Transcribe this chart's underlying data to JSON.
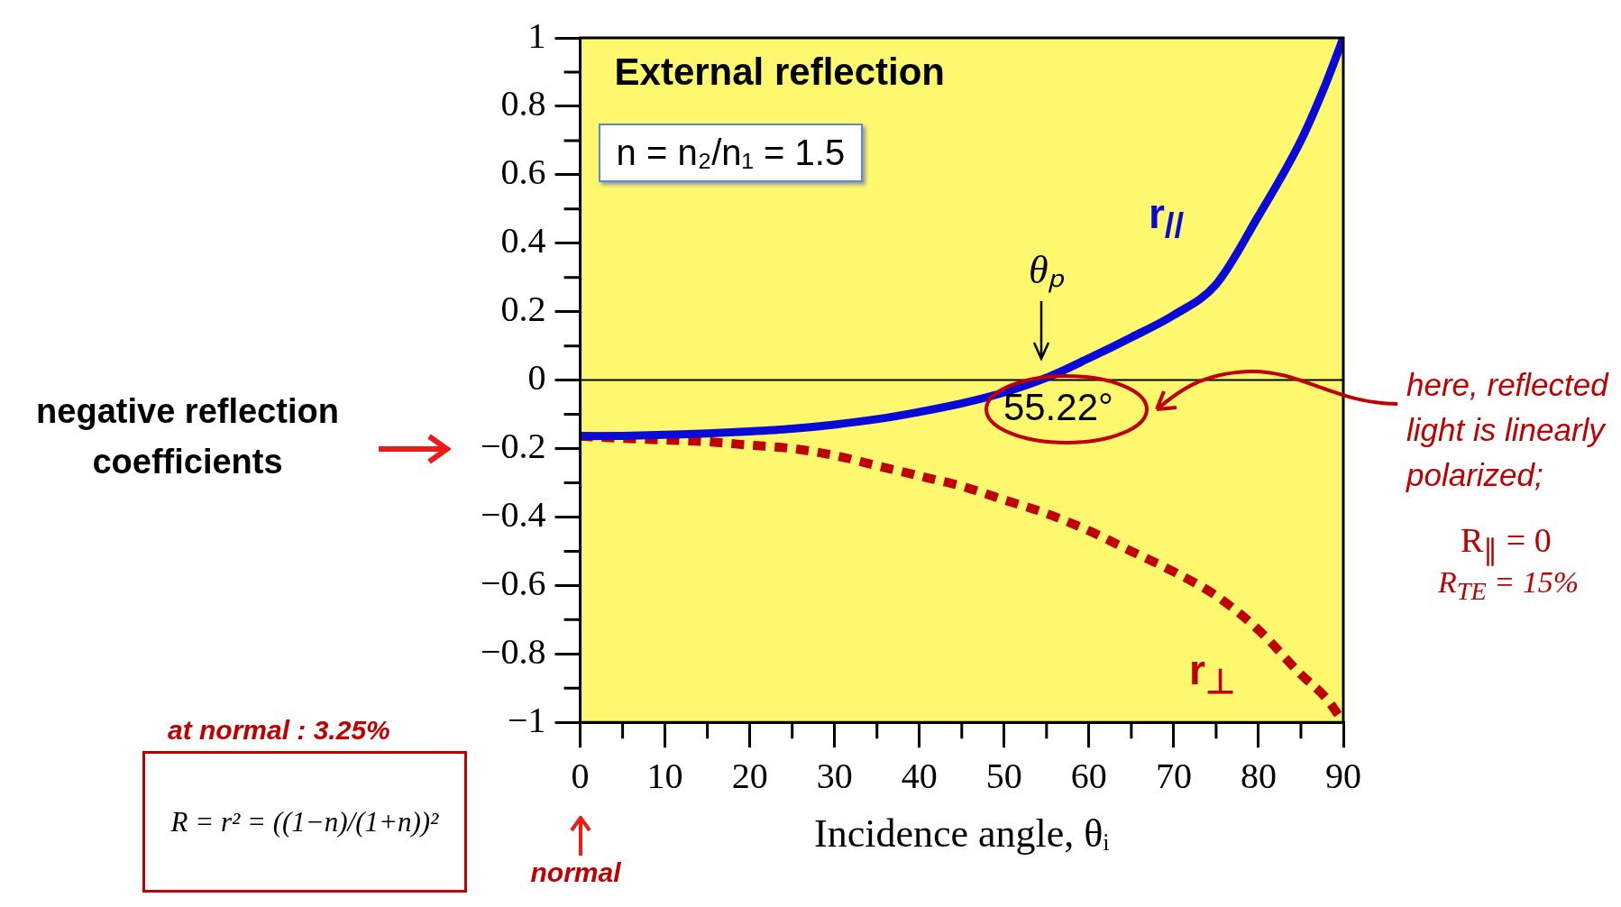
{
  "chart_data": {
    "type": "line",
    "title": "External reflection",
    "xlabel": "Incidence angle, θᵢ",
    "x": [
      0,
      5,
      10,
      15,
      20,
      25,
      30,
      35,
      40,
      45,
      50,
      55,
      60,
      65,
      70,
      75,
      80,
      85,
      88,
      90
    ],
    "series": [
      {
        "name": "r$_{//}$",
        "color": "#0a0ad8",
        "line_style": "solid",
        "values": [
          -0.164,
          -0.163,
          -0.16,
          -0.156,
          -0.15,
          -0.142,
          -0.13,
          -0.114,
          -0.093,
          -0.068,
          -0.036,
          0.007,
          0.064,
          0.125,
          0.19,
          0.28,
          0.48,
          0.7,
          0.87,
          1
        ]
      },
      {
        "name": "r$_{⊥}$",
        "color": "#c00000",
        "line_style": "dashed",
        "values": [
          -0.164,
          -0.17,
          -0.175,
          -0.18,
          -0.19,
          -0.2,
          -0.22,
          -0.25,
          -0.28,
          -0.31,
          -0.35,
          -0.39,
          -0.44,
          -0.5,
          -0.56,
          -0.63,
          -0.73,
          -0.86,
          -0.93,
          -1
        ]
      }
    ],
    "xlim": [
      0,
      90
    ],
    "xticks": [
      0,
      10,
      20,
      30,
      40,
      50,
      60,
      70,
      80,
      90
    ],
    "ylim": [
      -1,
      1
    ],
    "yticks": [
      {
        "value": -1,
        "label": "−1"
      },
      {
        "value": -0.8,
        "label": "−0.8"
      },
      {
        "value": -0.6,
        "label": "−0.6"
      },
      {
        "value": -0.4,
        "label": "−0.4"
      },
      {
        "value": -0.2,
        "label": "−0.2"
      },
      0,
      0.2,
      0.4,
      0.6,
      0.8,
      1
    ],
    "ref_lines": [
      {
        "axis": "y",
        "value": 0,
        "color": "#000000"
      }
    ],
    "grid": false,
    "legend": false,
    "marker": "none",
    "annotations": [
      "n = n₂/n₁ = 1.5",
      {
        "text": "θₚ",
        "x": 55.22,
        "y": 0
      },
      {
        "text": "55.22°",
        "x": 55.22,
        "y": 0
      },
      "negative reflection coefficients",
      "at normal : 3.25%",
      "R = r² = ((1−n)/(1+n))²",
      "normal",
      "here, reflected light is linearly polarized;",
      "R$_{∥}$ = 0",
      "R$_{TE}$ = 15%"
    ]
  }
}
